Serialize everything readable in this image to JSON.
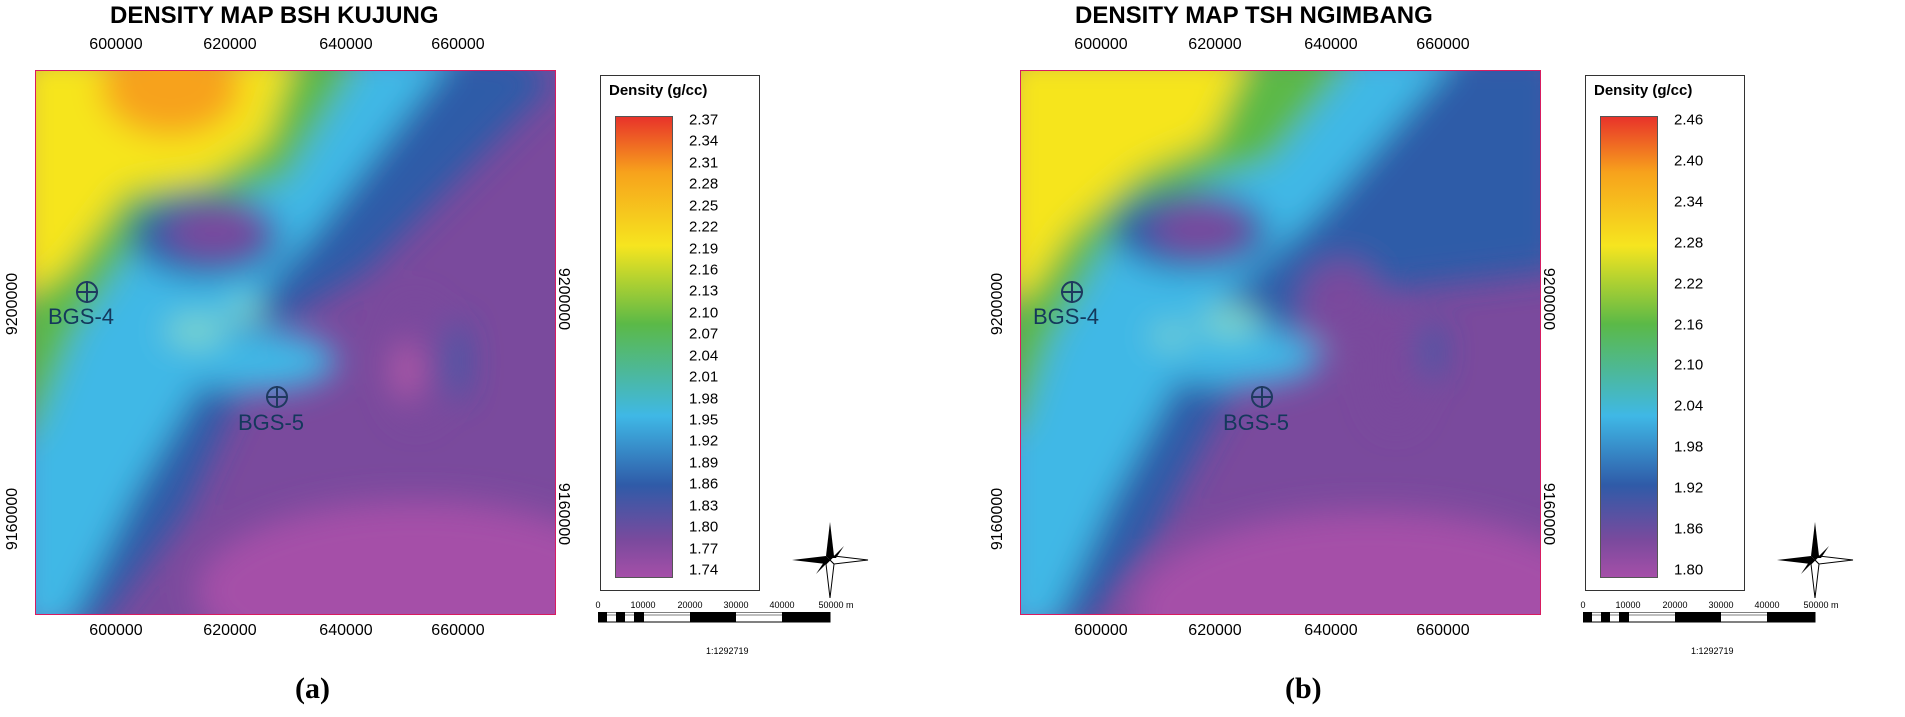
{
  "panels": [
    {
      "id": "a",
      "title": "DENSITY MAP BSH KUJUNG",
      "x_ticks": [
        "600000",
        "620000",
        "640000",
        "660000"
      ],
      "y_ticks_left": [
        "9200000",
        "9160000"
      ],
      "y_ticks_right": [
        "9200000",
        "9160000"
      ],
      "legend_title": "Density (g/cc)",
      "legend_values": [
        "2.37",
        "2.34",
        "2.31",
        "2.28",
        "2.25",
        "2.22",
        "2.19",
        "2.16",
        "2.13",
        "2.10",
        "2.07",
        "2.04",
        "2.01",
        "1.98",
        "1.95",
        "1.92",
        "1.89",
        "1.86",
        "1.83",
        "1.80",
        "1.77",
        "1.74"
      ],
      "wells": [
        "BGS-4",
        "BGS-5"
      ],
      "scale_labels": [
        "0",
        "10000",
        "20000",
        "30000",
        "40000",
        "50000 m"
      ],
      "scale_ratio": "1:1292719",
      "caption": "(a)"
    },
    {
      "id": "b",
      "title": "DENSITY MAP TSH NGIMBANG",
      "x_ticks": [
        "600000",
        "620000",
        "640000",
        "660000"
      ],
      "y_ticks_left": [
        "9200000",
        "9160000"
      ],
      "y_ticks_right": [
        "9200000",
        "9160000"
      ],
      "legend_title": "Density (g/cc)",
      "legend_values": [
        "2.46",
        "2.40",
        "2.34",
        "2.28",
        "2.22",
        "2.16",
        "2.10",
        "2.04",
        "1.98",
        "1.92",
        "1.86",
        "1.80"
      ],
      "wells": [
        "BGS-4",
        "BGS-5"
      ],
      "scale_labels": [
        "0",
        "10000",
        "20000",
        "30000",
        "40000",
        "50000 m"
      ],
      "scale_ratio": "1:1292719",
      "caption": "(b)"
    }
  ],
  "colors": {
    "high": "#e8332a",
    "orange": "#f7a21c",
    "yellow": "#f6e51f",
    "green": "#5bb947",
    "cyan": "#3fb8e6",
    "blue": "#2f5ba8",
    "purple": "#7a4a9d",
    "low": "#a54fa8",
    "border": "#d81b60"
  }
}
